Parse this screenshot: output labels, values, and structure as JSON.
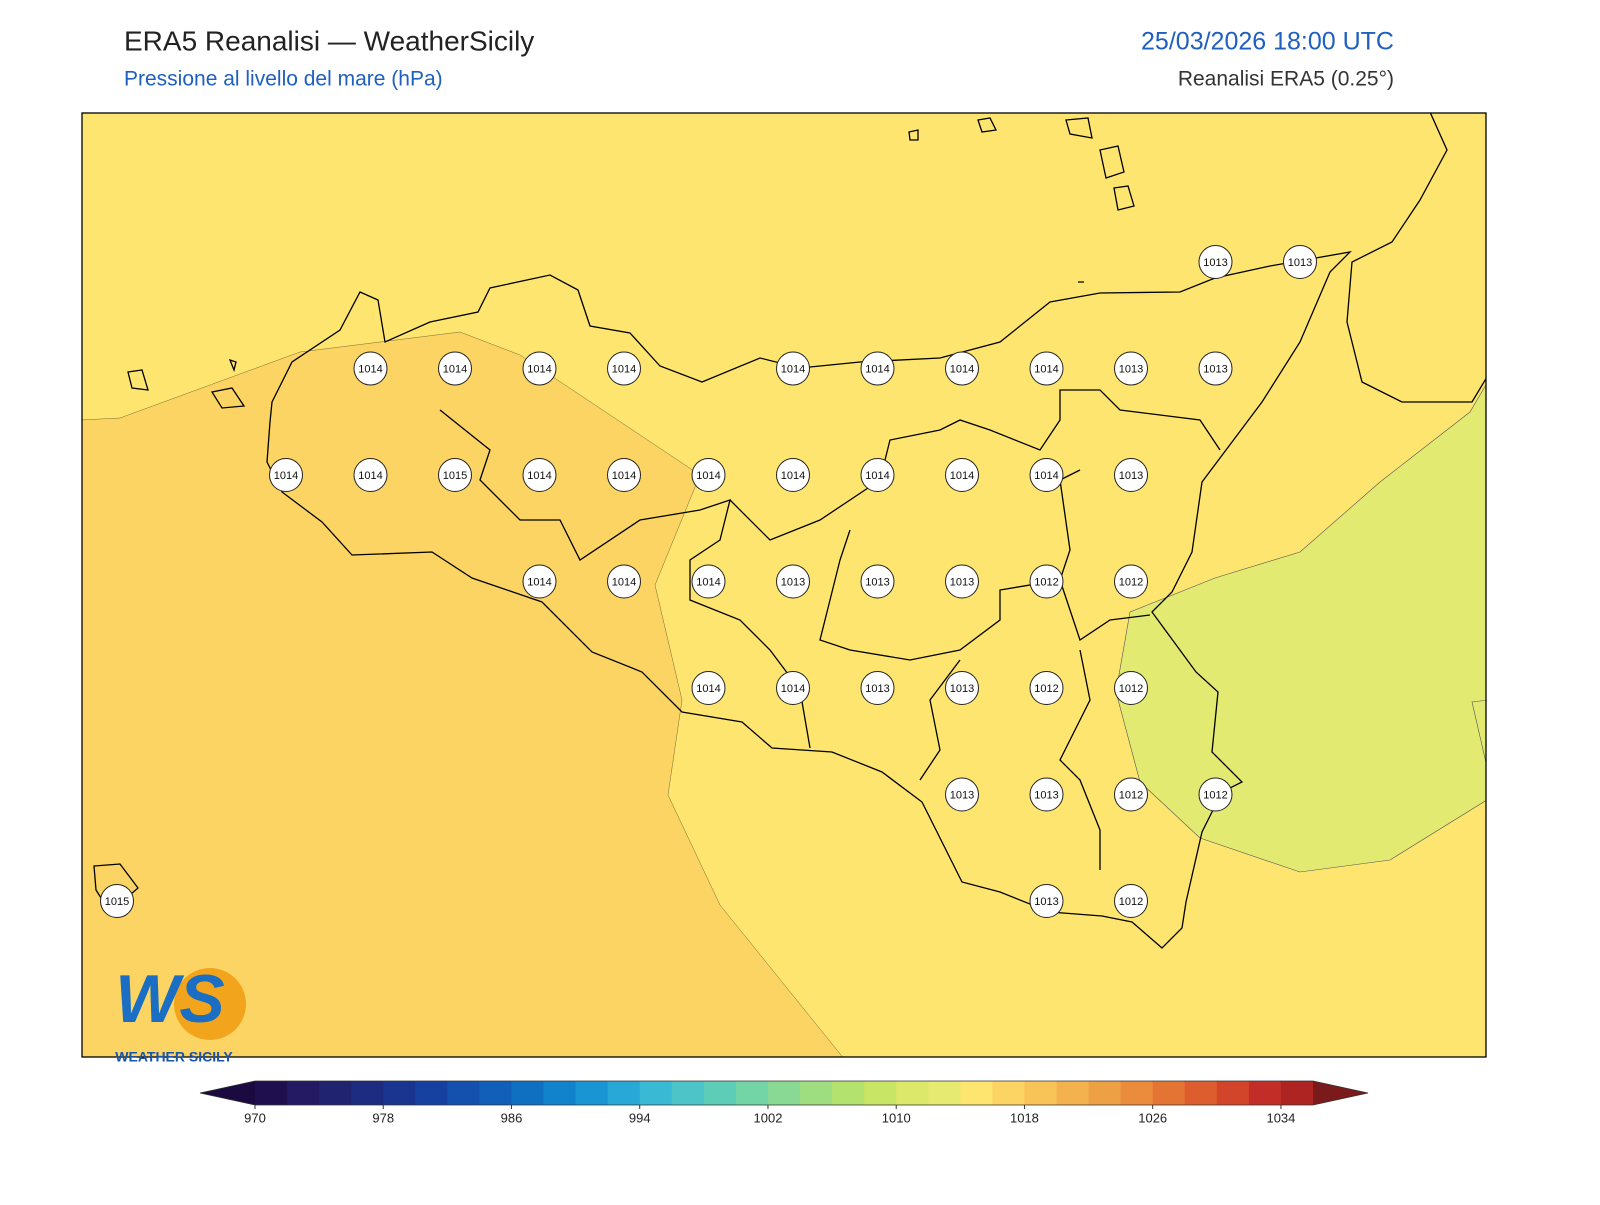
{
  "header": {
    "title": "ERA5 Reanalisi — WeatherSicily",
    "subtitle": "Pressione al livello del mare (hPa)",
    "datetime": "25/03/2026 18:00 UTC",
    "source": "Reanalisi ERA5 (0.25°)"
  },
  "pressure_grid": [
    [
      null,
      null,
      null,
      null,
      null,
      null,
      null,
      null,
      null,
      null,
      null,
      null,
      null,
      1013,
      1013
    ],
    [
      null,
      null,
      null,
      1014,
      1014,
      1014,
      1014,
      null,
      1014,
      1014,
      1014,
      1014,
      1013,
      1013,
      null
    ],
    [
      null,
      null,
      1014,
      1014,
      1015,
      1014,
      1014,
      1014,
      1014,
      1014,
      1014,
      1014,
      1013,
      null,
      null
    ],
    [
      null,
      null,
      null,
      null,
      null,
      1014,
      1014,
      1014,
      1013,
      1013,
      1013,
      1012,
      1012,
      null,
      null
    ],
    [
      null,
      null,
      null,
      null,
      null,
      null,
      null,
      1014,
      1014,
      1013,
      1013,
      1012,
      1012,
      null,
      null
    ],
    [
      null,
      null,
      null,
      null,
      null,
      null,
      null,
      null,
      null,
      null,
      1013,
      1013,
      1012,
      1012,
      null
    ],
    [
      1015,
      null,
      null,
      null,
      null,
      null,
      null,
      null,
      null,
      null,
      null,
      1013,
      1012,
      null,
      null
    ]
  ],
  "colorbar": {
    "lim": [
      970,
      1036
    ],
    "ticks": [
      970,
      978,
      986,
      994,
      1002,
      1010,
      1018,
      1026,
      1034
    ],
    "colors": [
      "#1f0f4f",
      "#231a63",
      "#1f2370",
      "#1d2b80",
      "#1a3590",
      "#1741a0",
      "#1450ae",
      "#115fb8",
      "#0f70c2",
      "#1182cc",
      "#1a95d3",
      "#27a8d6",
      "#39b9d3",
      "#4cc4c8",
      "#5ecdb8",
      "#73d4a6",
      "#89d994",
      "#9edd80",
      "#b4e26e",
      "#c8e566",
      "#dbe86a",
      "#e6ea70",
      "#fde56f",
      "#fbd463",
      "#f8c457",
      "#f3b24d",
      "#eea044",
      "#ea8c3b",
      "#e47433",
      "#dd5d2e",
      "#d3452a",
      "#c22e27",
      "#ae2423"
    ],
    "under_color": "#1a0a40",
    "over_color": "#7a1a1a"
  },
  "logo": {
    "letters": "WS",
    "text": "WEATHER SICILY"
  }
}
